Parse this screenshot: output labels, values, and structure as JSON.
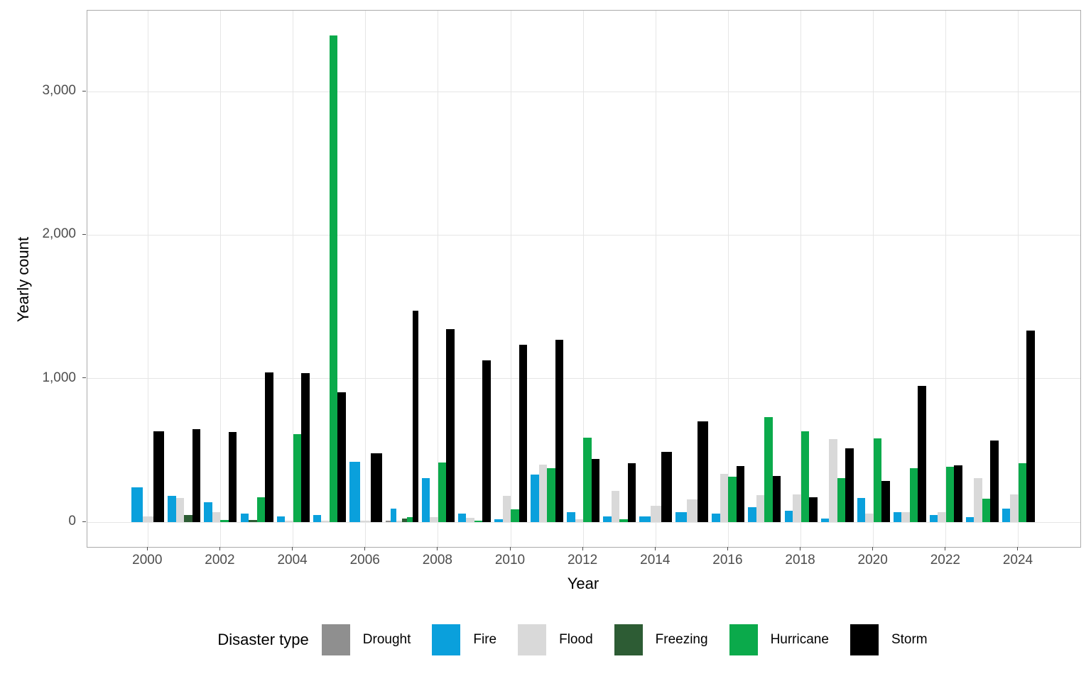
{
  "chart_data": {
    "type": "bar",
    "title": "",
    "xlabel": "Year",
    "ylabel": "Yearly count",
    "legend_title": "Disaster type",
    "legend_position": "bottom",
    "grid": true,
    "categories": [
      2000,
      2001,
      2002,
      2003,
      2004,
      2005,
      2006,
      2007,
      2008,
      2009,
      2010,
      2011,
      2012,
      2013,
      2014,
      2015,
      2016,
      2017,
      2018,
      2019,
      2020,
      2021,
      2022,
      2023,
      2024
    ],
    "x_tick_labels": [
      "2000",
      "2002",
      "2004",
      "2006",
      "2008",
      "2010",
      "2012",
      "2014",
      "2016",
      "2018",
      "2020",
      "2022",
      "2024"
    ],
    "y_ticks": [
      {
        "value": 0,
        "label": "0"
      },
      {
        "value": 1000,
        "label": "1,000"
      },
      {
        "value": 2000,
        "label": "2,000"
      },
      {
        "value": 3000,
        "label": "3,000"
      }
    ],
    "ylim": [
      0,
      3580
    ],
    "series": [
      {
        "name": "Drought",
        "color": "#8f8f8f",
        "values": [
          null,
          null,
          null,
          null,
          null,
          null,
          null,
          10,
          null,
          null,
          null,
          null,
          null,
          null,
          null,
          null,
          null,
          null,
          null,
          null,
          null,
          null,
          null,
          null,
          null
        ]
      },
      {
        "name": "Fire",
        "color": "#0aa0dc",
        "values": [
          240,
          185,
          140,
          60,
          40,
          50,
          420,
          95,
          305,
          60,
          20,
          330,
          70,
          40,
          40,
          70,
          60,
          105,
          80,
          25,
          170,
          70,
          50,
          35,
          95
        ]
      },
      {
        "name": "Flood",
        "color": "#d9d9d9",
        "values": [
          40,
          170,
          70,
          null,
          10,
          10,
          10,
          10,
          35,
          30,
          185,
          400,
          20,
          220,
          115,
          160,
          335,
          190,
          195,
          580,
          60,
          70,
          70,
          305,
          195
        ]
      },
      {
        "name": "Freezing",
        "color": "#2d5c34",
        "values": [
          null,
          50,
          null,
          15,
          null,
          null,
          null,
          25,
          null,
          null,
          null,
          null,
          null,
          null,
          null,
          null,
          null,
          null,
          null,
          null,
          null,
          null,
          null,
          null,
          null
        ]
      },
      {
        "name": "Hurricane",
        "color": "#0baa4b",
        "values": [
          null,
          null,
          15,
          175,
          615,
          3390,
          null,
          35,
          415,
          10,
          90,
          375,
          590,
          20,
          null,
          null,
          315,
          730,
          635,
          305,
          585,
          375,
          385,
          165,
          410
        ]
      },
      {
        "name": "Storm",
        "color": "#000000",
        "values": [
          635,
          650,
          630,
          1045,
          1040,
          905,
          480,
          1475,
          1345,
          1125,
          1235,
          1270,
          440,
          410,
          490,
          700,
          390,
          320,
          175,
          515,
          285,
          950,
          395,
          570,
          1335
        ]
      }
    ],
    "style_colors": {
      "gridline": "#e6e6e6",
      "panel_border": "#ababab",
      "tick_text": "#4d4d4d",
      "axis_title_text": "#000000"
    }
  }
}
